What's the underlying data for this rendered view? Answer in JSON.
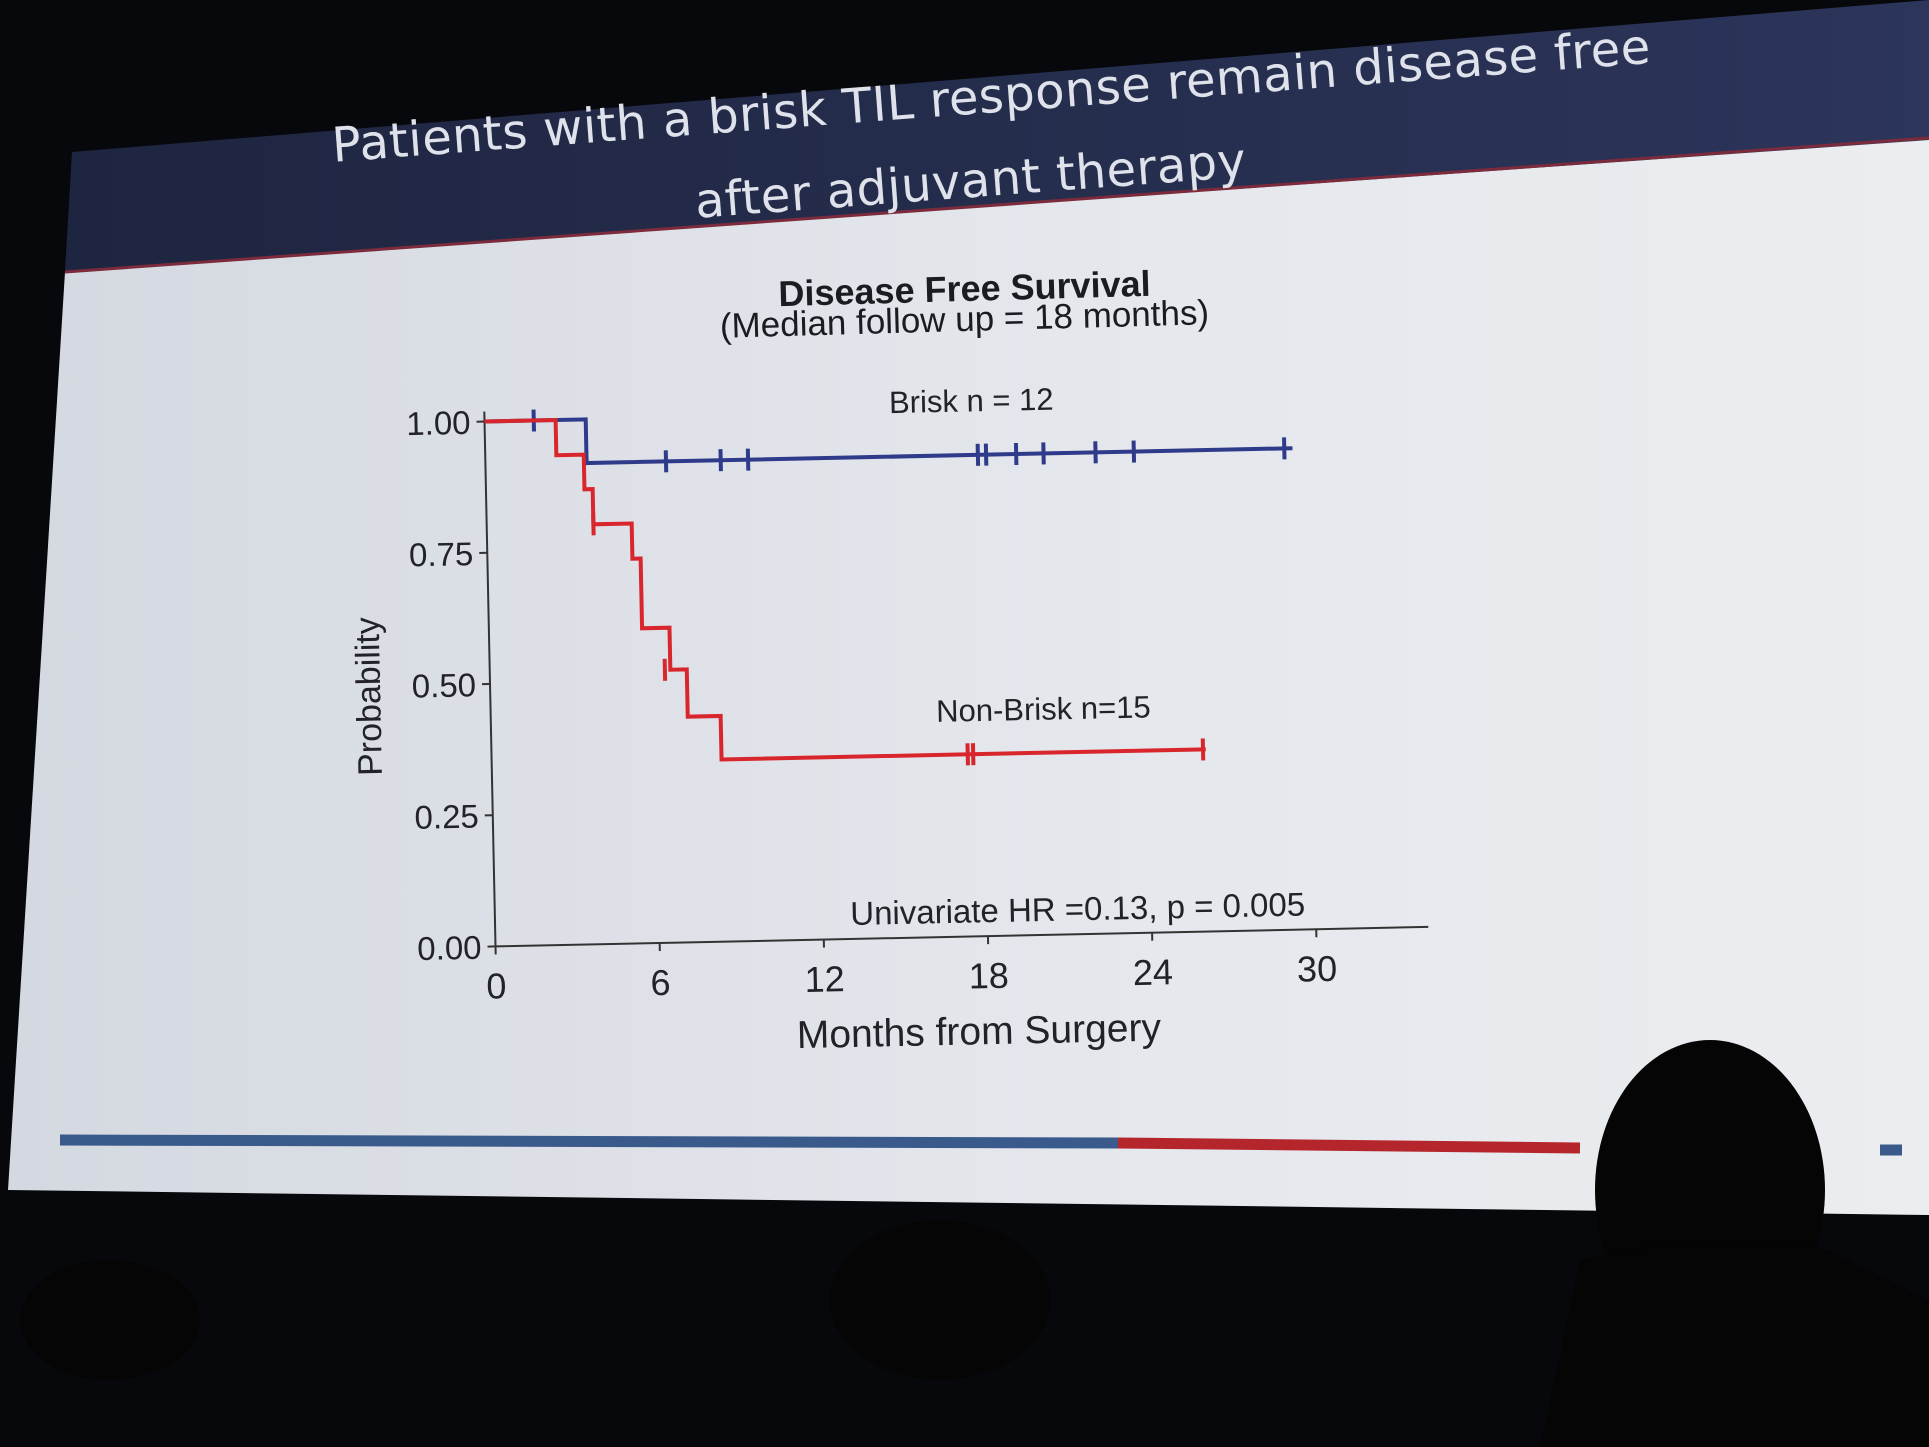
{
  "slide": {
    "title_line1": "Patients with a brisk TIL response remain disease free",
    "title_line2": "after adjuvant therapy",
    "header_color": "#222a45",
    "background_color": "#e2e5eb",
    "footer_bar_blue": "#3a5a8c",
    "footer_bar_red": "#b4262c"
  },
  "chart_data": {
    "type": "line",
    "chart_subtype": "kaplan-meier step curve",
    "title": "Disease Free Survival",
    "subtitle": "(Median follow up = 18 months)",
    "xlabel": "Months from Surgery",
    "ylabel": "Probability",
    "xlim": [
      0,
      33
    ],
    "ylim": [
      0,
      1.05
    ],
    "x_ticks": [
      0,
      6,
      12,
      18,
      24,
      30
    ],
    "x_tick_labels": [
      "0",
      "6",
      "12",
      "18",
      "24",
      "30"
    ],
    "y_ticks": [
      0,
      0.25,
      0.5,
      0.75,
      1.0
    ],
    "y_tick_labels": [
      "0.00",
      "0.25",
      "0.50",
      "0.75",
      "1.00"
    ],
    "grid": false,
    "series": [
      {
        "name": "Brisk n = 12",
        "color": "#2e3a8a",
        "steps": [
          [
            0,
            1.0
          ],
          [
            3.7,
            1.0
          ],
          [
            3.7,
            0.917
          ],
          [
            29.5,
            0.917
          ]
        ],
        "censors": [
          [
            1.8,
            1.0
          ],
          [
            6.6,
            0.917
          ],
          [
            8.6,
            0.917
          ],
          [
            9.6,
            0.917
          ],
          [
            18.0,
            0.917
          ],
          [
            18.3,
            0.917
          ],
          [
            19.4,
            0.917
          ],
          [
            20.4,
            0.917
          ],
          [
            22.3,
            0.917
          ],
          [
            23.7,
            0.917
          ],
          [
            29.2,
            0.917
          ]
        ]
      },
      {
        "name": "Non-Brisk n=15",
        "color": "#d8262c",
        "steps": [
          [
            0,
            1.0
          ],
          [
            2.6,
            1.0
          ],
          [
            2.6,
            0.933
          ],
          [
            3.6,
            0.933
          ],
          [
            3.6,
            0.867
          ],
          [
            3.9,
            0.867
          ],
          [
            3.9,
            0.8
          ],
          [
            5.3,
            0.8
          ],
          [
            5.3,
            0.733
          ],
          [
            5.6,
            0.733
          ],
          [
            5.6,
            0.6
          ],
          [
            6.6,
            0.6
          ],
          [
            6.6,
            0.52
          ],
          [
            7.2,
            0.52
          ],
          [
            7.2,
            0.43
          ],
          [
            8.4,
            0.43
          ],
          [
            8.4,
            0.347
          ],
          [
            26.1,
            0.347
          ]
        ],
        "censors": [
          [
            3.9,
            0.8
          ],
          [
            6.4,
            0.52
          ],
          [
            17.4,
            0.347
          ],
          [
            17.6,
            0.347
          ],
          [
            26.0,
            0.347
          ]
        ]
      }
    ],
    "annotations": [
      {
        "text": "Brisk n = 12"
      },
      {
        "text": "Non-Brisk n=15"
      },
      {
        "text": "Univariate HR =0.13,  p = 0.005"
      }
    ]
  }
}
